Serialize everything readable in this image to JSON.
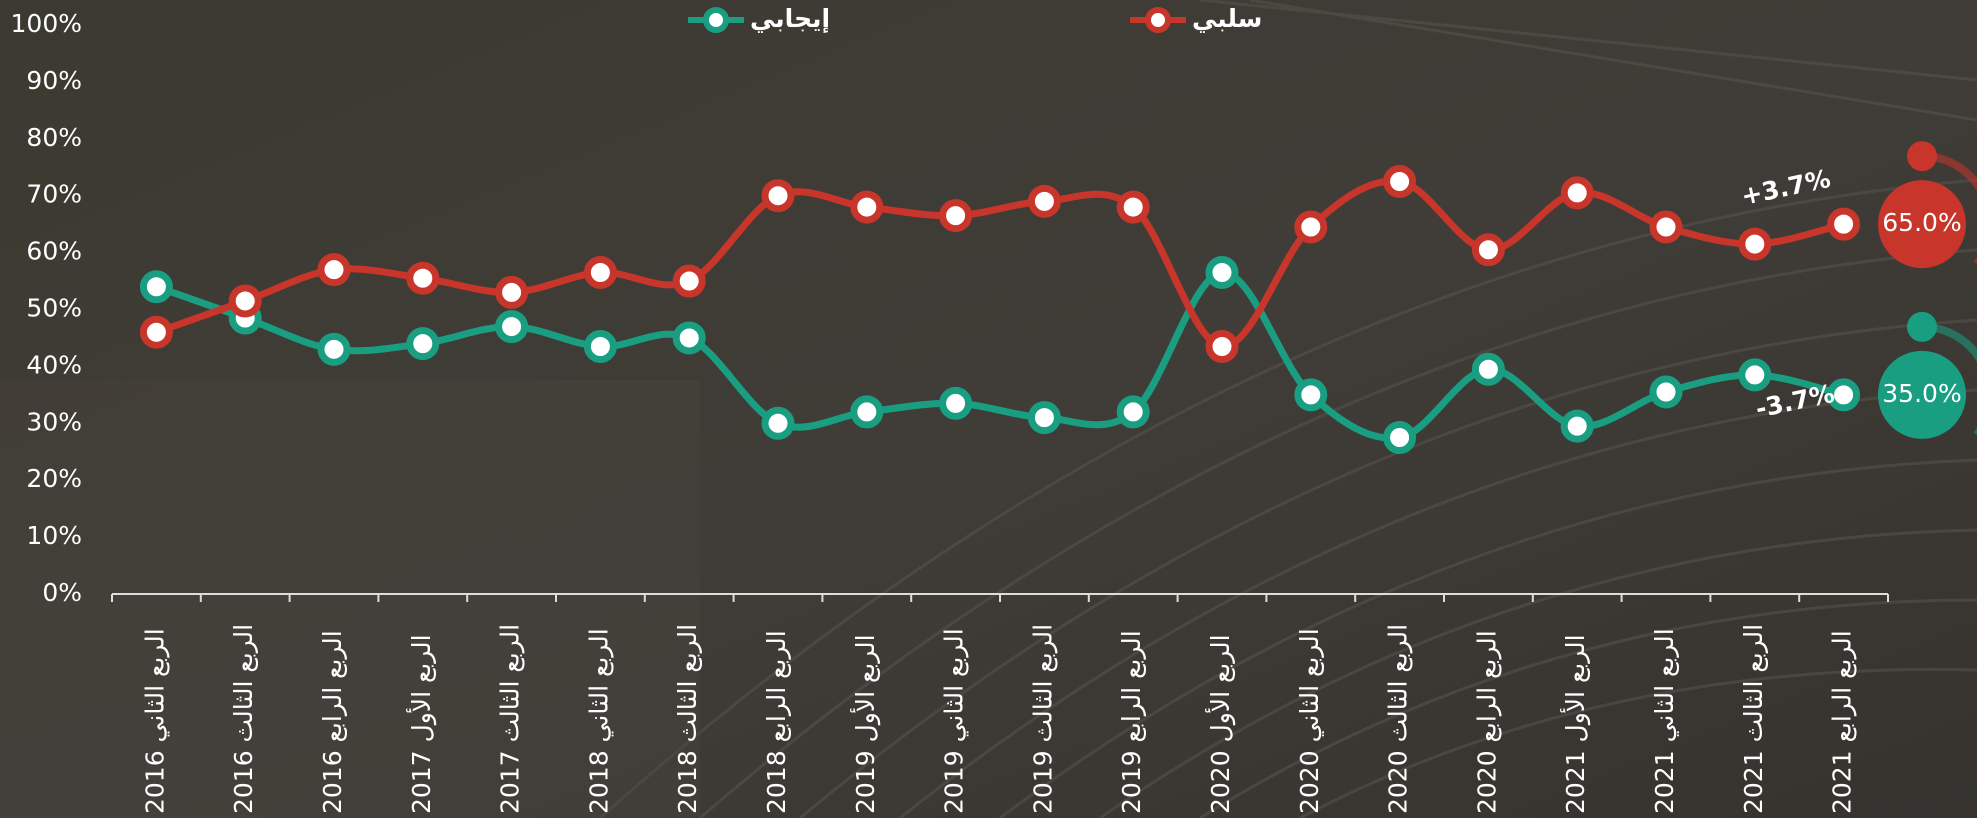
{
  "chart_data": {
    "type": "line",
    "categories": [
      "الربع الثاني 2016",
      "الربع الثالث 2016",
      "الربع الرابع 2016",
      "الربع الأول 2017",
      "الربع الثالث 2017",
      "الربع الثاني 2018",
      "الربع الثالث 2018",
      "الربع الرابع 2018",
      "الربع الأول 2019",
      "الربع الثاني 2019",
      "الربع الثالث 2019",
      "الربع الرابع 2019",
      "الربع الأول 2020",
      "الربع الثاني 2020",
      "الربع الثالث 2020",
      "الربع الرابع 2020",
      "الربع الأول 2021",
      "الربع الثاني 2021",
      "الربع الثالث 2021",
      "الربع الرابع 2021"
    ],
    "series": [
      {
        "name": "إيجابي",
        "color": "#1a9e82",
        "change_label": "-3.7%",
        "values": [
          54,
          48.5,
          43,
          44,
          47,
          43.5,
          45,
          30,
          32,
          33.5,
          31,
          32,
          56.5,
          35,
          27.5,
          39.5,
          29.5,
          35.5,
          38.5,
          35
        ],
        "value_labels": [
          null,
          null,
          null,
          null,
          null,
          null,
          null,
          null,
          null,
          null,
          null,
          null,
          null,
          null,
          null,
          null,
          null,
          null,
          null,
          "35.0%"
        ]
      },
      {
        "name": "سلبي",
        "color": "#c8352a",
        "change_label": "+3.7%",
        "values": [
          46,
          51.5,
          57,
          55.5,
          53,
          56.5,
          55,
          70,
          68,
          66.5,
          69,
          68,
          43.5,
          64.5,
          72.5,
          60.5,
          70.5,
          64.5,
          61.5,
          65
        ],
        "value_labels": [
          null,
          null,
          null,
          null,
          null,
          null,
          null,
          null,
          null,
          null,
          null,
          null,
          null,
          null,
          null,
          null,
          null,
          null,
          null,
          "65.0%"
        ]
      }
    ],
    "ylim": [
      0,
      100
    ],
    "yticks": [
      {
        "value": 0,
        "label": "0%"
      },
      {
        "value": 10,
        "label": "10%"
      },
      {
        "value": 20,
        "label": "20%"
      },
      {
        "value": 30,
        "label": "30%"
      },
      {
        "value": 40,
        "label": "40%"
      },
      {
        "value": 50,
        "label": "50%"
      },
      {
        "value": 60,
        "label": "60%"
      },
      {
        "value": 70,
        "label": "70%"
      },
      {
        "value": 80,
        "label": "80%"
      },
      {
        "value": 90,
        "label": "90%"
      },
      {
        "value": 100,
        "label": "100%"
      }
    ],
    "grid": false,
    "legend": "top"
  }
}
